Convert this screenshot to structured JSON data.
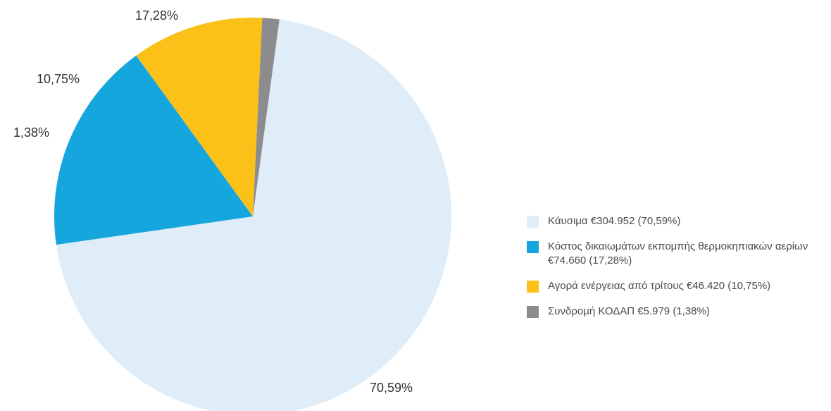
{
  "chart_data": {
    "type": "pie",
    "categories": [
      "Κάυσιμα",
      "Κόστος δικαιωμάτων εκπομπής θερμοκηπιακών αερίων",
      "Αγορά ενέργειας από τρίτους",
      "Συνδρομή ΚΟΔΑΠ"
    ],
    "values": [
      304952,
      74660,
      46420,
      5979
    ],
    "percent_labels": [
      "70,59%",
      "17,28%",
      "10,75%",
      "1,38%"
    ],
    "legend_labels": [
      "Κάυσιμα  €304.952 (70,59%)",
      "Κόστος δικαιωμάτων εκπομπής θερμοκηπιακών αερίων €74.660 (17,28%)",
      "Αγορά ενέργειας από τρίτους €46.420 (10,75%)",
      "Συνδρομή ΚΟΔΑΠ €5.979 (1,38%)"
    ],
    "colors": [
      "#deedf8",
      "#15a6de",
      "#fcc119",
      "#8c8b8e"
    ],
    "legend_position": "right",
    "start_angle_deg": 7.7,
    "direction": "clockwise"
  }
}
